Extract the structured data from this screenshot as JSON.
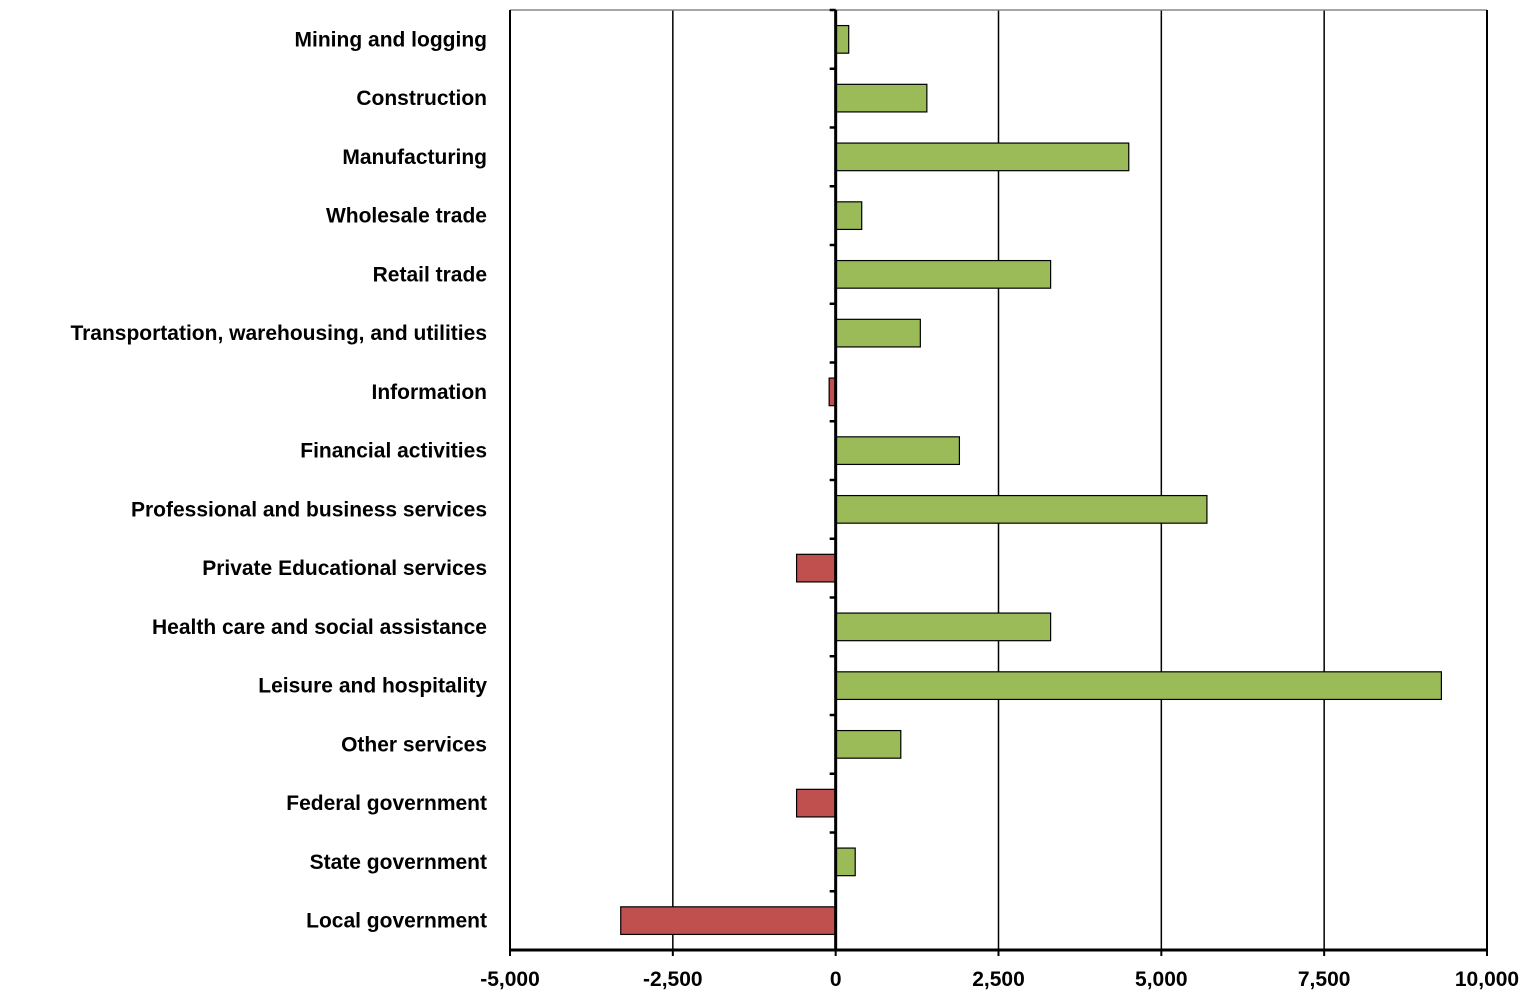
{
  "chart_data": {
    "type": "bar",
    "orientation": "horizontal",
    "categories": [
      "Mining and logging",
      "Construction",
      "Manufacturing",
      "Wholesale trade",
      "Retail trade",
      "Transportation, warehousing, and utilities",
      "Information",
      "Financial activities",
      "Professional and business services",
      "Private Educational services",
      "Health care and social assistance",
      "Leisure and hospitality",
      "Other services",
      "Federal government",
      "State government",
      "Local government"
    ],
    "values": [
      200,
      1400,
      4500,
      400,
      3300,
      1300,
      -100,
      1900,
      5700,
      -600,
      3300,
      9300,
      1000,
      -600,
      300,
      -3300
    ],
    "xlim": [
      -5000,
      10000
    ],
    "x_ticks": [
      -5000,
      -2500,
      0,
      2500,
      5000,
      7500,
      10000
    ],
    "x_tick_labels": [
      "-5,000",
      "-2,500",
      "0",
      "2,500",
      "5,000",
      "7,500",
      "10,000"
    ],
    "title": "",
    "xlabel": "",
    "ylabel": "",
    "grid": "vertical",
    "legend": "none",
    "colors": {
      "positive": "#9BBB59",
      "negative": "#C0504D",
      "bar_stroke": "#000000",
      "grid": "#000000"
    }
  }
}
